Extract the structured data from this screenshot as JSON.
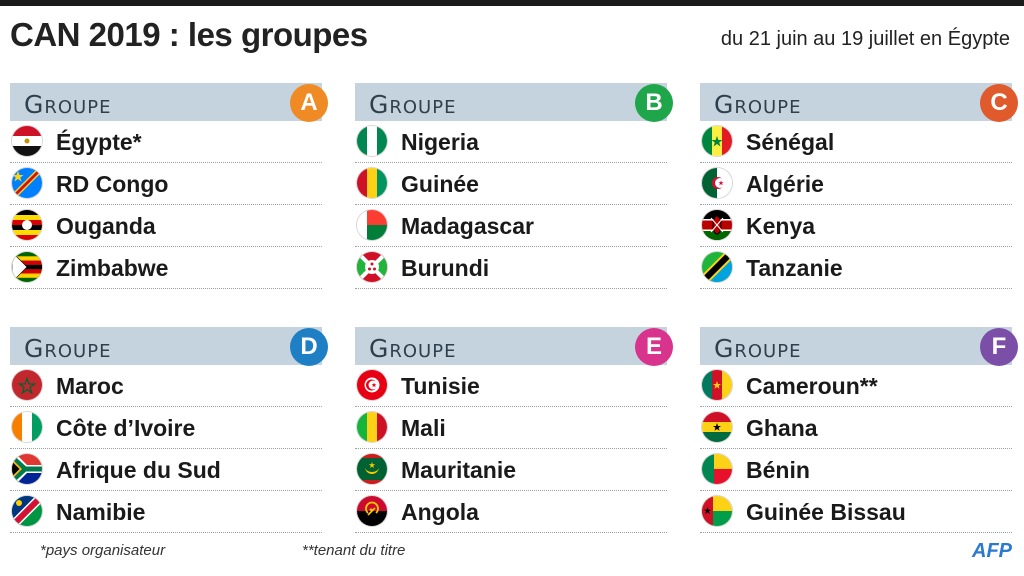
{
  "header": {
    "title": "CAN 2019 : les groupes",
    "subtitle": "du 21 juin au 19 juillet en Égypte"
  },
  "groups": [
    {
      "label": "Groupe",
      "letter": "A",
      "color": "#f08a24",
      "teams": [
        {
          "name": "Égypte*",
          "flag": "egypt"
        },
        {
          "name": "RD Congo",
          "flag": "drc"
        },
        {
          "name": "Ouganda",
          "flag": "uganda"
        },
        {
          "name": "Zimbabwe",
          "flag": "zimbabwe"
        }
      ]
    },
    {
      "label": "Groupe",
      "letter": "B",
      "color": "#1fa64a",
      "teams": [
        {
          "name": "Nigeria",
          "flag": "nigeria"
        },
        {
          "name": "Guinée",
          "flag": "guinea"
        },
        {
          "name": "Madagascar",
          "flag": "madagascar"
        },
        {
          "name": "Burundi",
          "flag": "burundi"
        }
      ]
    },
    {
      "label": "Groupe",
      "letter": "C",
      "color": "#e05a2b",
      "teams": [
        {
          "name": "Sénégal",
          "flag": "senegal"
        },
        {
          "name": "Algérie",
          "flag": "algeria"
        },
        {
          "name": "Kenya",
          "flag": "kenya"
        },
        {
          "name": "Tanzanie",
          "flag": "tanzania"
        }
      ]
    },
    {
      "label": "Groupe",
      "letter": "D",
      "color": "#1f7fc4",
      "teams": [
        {
          "name": "Maroc",
          "flag": "morocco"
        },
        {
          "name": "Côte d’Ivoire",
          "flag": "ivorycoast"
        },
        {
          "name": "Afrique du Sud",
          "flag": "southafrica"
        },
        {
          "name": "Namibie",
          "flag": "namibia"
        }
      ]
    },
    {
      "label": "Groupe",
      "letter": "E",
      "color": "#d8338d",
      "teams": [
        {
          "name": "Tunisie",
          "flag": "tunisia"
        },
        {
          "name": "Mali",
          "flag": "mali"
        },
        {
          "name": "Mauritanie",
          "flag": "mauritania"
        },
        {
          "name": "Angola",
          "flag": "angola"
        }
      ]
    },
    {
      "label": "Groupe",
      "letter": "F",
      "color": "#7b4fa8",
      "teams": [
        {
          "name": "Cameroun**",
          "flag": "cameroon"
        },
        {
          "name": "Ghana",
          "flag": "ghana"
        },
        {
          "name": "Bénin",
          "flag": "benin"
        },
        {
          "name": "Guinée Bissau",
          "flag": "guineabissau"
        }
      ]
    }
  ],
  "footnotes": {
    "host": "*pays organisateur",
    "holder": "**tenant du titre"
  },
  "logo": "AFP"
}
